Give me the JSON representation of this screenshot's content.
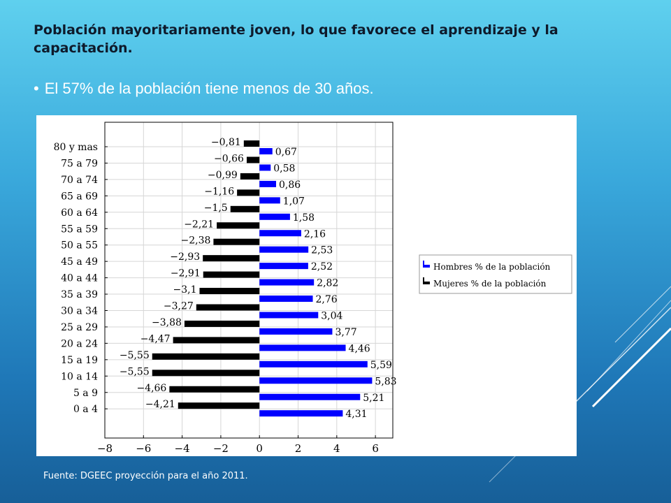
{
  "slide": {
    "title": "Población mayoritariamente joven, lo que favorece el aprendizaje y la capacitación.",
    "bullet_marker": "•",
    "bullet_text": "El 57% de la población tiene menos de 30 años.",
    "source": "Fuente: DGEEC proyección para el año 2011."
  },
  "chart_data": {
    "type": "bar",
    "orientation": "horizontal",
    "categories": [
      "80 y mas",
      "75 a 79",
      "70 a 74",
      "65 a 69",
      "60 a 64",
      "55 a 59",
      "50 a 55",
      "45 a 49",
      "40 a 44",
      "35 a 39",
      "30 a 34",
      "25 a 29",
      "20 a 24",
      "15 a 19",
      "10 a 14",
      "5 a 9",
      "0 a 4"
    ],
    "series": [
      {
        "name": "Hombres % de la población",
        "color": "#0000ff",
        "values": [
          0.67,
          0.58,
          0.86,
          1.07,
          1.58,
          2.16,
          2.53,
          2.52,
          2.82,
          2.76,
          3.04,
          3.77,
          4.46,
          5.59,
          5.83,
          5.21,
          4.31
        ],
        "labels": [
          "0,67",
          "0,58",
          "0,86",
          "1,07",
          "1,58",
          "2,16",
          "2,53",
          "2,52",
          "2,82",
          "2,76",
          "3,04",
          "3,77",
          "4,46",
          "5,59",
          "5,83",
          "5,21",
          "4,31"
        ]
      },
      {
        "name": "Mujeres % de la población",
        "color": "#000000",
        "values": [
          -0.81,
          -0.66,
          -0.99,
          -1.16,
          -1.5,
          -2.21,
          -2.38,
          -2.93,
          -2.91,
          -3.1,
          -3.27,
          -3.88,
          -4.47,
          -5.55,
          -5.55,
          -4.66,
          -4.21
        ],
        "labels": [
          "−0,81",
          "−0,66",
          "−0,99",
          "−1,16",
          "−1,5",
          "−2,21",
          "−2,38",
          "−2,93",
          "−2,91",
          "−3,1",
          "−3,27",
          "−3,88",
          "−4,47",
          "−5,55",
          "−5,55",
          "−4,66",
          "−4,21"
        ]
      }
    ],
    "xlim": [
      -8,
      6.9
    ],
    "xticks": [
      -8,
      -6,
      -4,
      -2,
      0,
      2,
      4,
      6
    ],
    "xtick_labels": [
      "−8",
      "−6",
      "−4",
      "−2",
      "0",
      "2",
      "4",
      "6"
    ],
    "grid": true,
    "legend_position": "right"
  }
}
